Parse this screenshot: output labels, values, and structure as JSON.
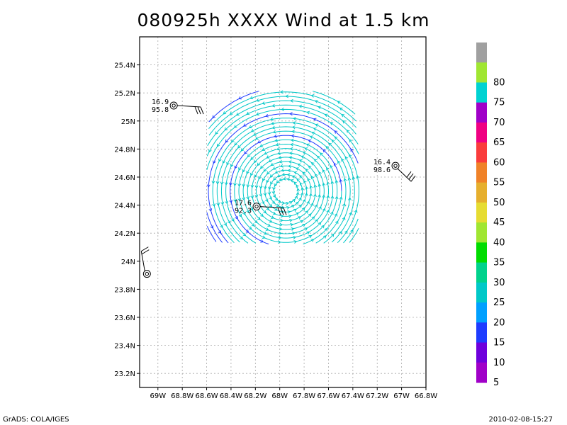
{
  "title": "080925h XXXX Wind at 1.5 km",
  "credit": "GrADS: COLA/IGES",
  "timestamp": "2010-02-08-15:27",
  "chart_data": {
    "type": "streamline",
    "title": "080925h XXXX Wind at 1.5 km",
    "grid": true,
    "xlim": [
      -69.15,
      -66.8
    ],
    "ylim": [
      23.1,
      25.6
    ],
    "x_ticks": [
      {
        "v": -69.0,
        "label": "69W"
      },
      {
        "v": -68.8,
        "label": "68.8W"
      },
      {
        "v": -68.6,
        "label": "68.6W"
      },
      {
        "v": -68.4,
        "label": "68.4W"
      },
      {
        "v": -68.2,
        "label": "68.2W"
      },
      {
        "v": -68.0,
        "label": "68W"
      },
      {
        "v": -67.8,
        "label": "67.8W"
      },
      {
        "v": -67.6,
        "label": "67.6W"
      },
      {
        "v": -67.4,
        "label": "67.4W"
      },
      {
        "v": -67.2,
        "label": "67.2W"
      },
      {
        "v": -67.0,
        "label": "67W"
      },
      {
        "v": -66.8,
        "label": "66.8W"
      }
    ],
    "y_ticks": [
      {
        "v": 23.2,
        "label": "23.2N"
      },
      {
        "v": 23.4,
        "label": "23.4N"
      },
      {
        "v": 23.6,
        "label": "23.6N"
      },
      {
        "v": 23.8,
        "label": "23.8N"
      },
      {
        "v": 24.0,
        "label": "24N"
      },
      {
        "v": 24.2,
        "label": "24.2N"
      },
      {
        "v": 24.4,
        "label": "24.4N"
      },
      {
        "v": 24.6,
        "label": "24.6N"
      },
      {
        "v": 24.8,
        "label": "24.8N"
      },
      {
        "v": 25.0,
        "label": "25N"
      },
      {
        "v": 25.2,
        "label": "25.2N"
      },
      {
        "v": 25.4,
        "label": "25.4N"
      }
    ],
    "streamline_field": {
      "center": [
        -67.95,
        24.5
      ],
      "lon_range": [
        -68.6,
        -67.35
      ],
      "lat_range": [
        24.12,
        25.22
      ],
      "min_radius_deg": 0.1,
      "max_radius_deg": 0.85,
      "rotation": "counterclockwise"
    },
    "colorbar": {
      "levels": [
        {
          "label": "",
          "color": "#a0a0a0"
        },
        {
          "label": "80",
          "color": "#a0e632"
        },
        {
          "label": "75",
          "color": "#00d2d2"
        },
        {
          "label": "70",
          "color": "#a000c8"
        },
        {
          "label": "65",
          "color": "#f00082"
        },
        {
          "label": "60",
          "color": "#fa3c3c"
        },
        {
          "label": "55",
          "color": "#f08228"
        },
        {
          "label": "50",
          "color": "#e6af2d"
        },
        {
          "label": "45",
          "color": "#e6dc32"
        },
        {
          "label": "40",
          "color": "#a0e632"
        },
        {
          "label": "35",
          "color": "#00dc00"
        },
        {
          "label": "30",
          "color": "#00d28c"
        },
        {
          "label": "25",
          "color": "#00c8c8"
        },
        {
          "label": "20",
          "color": "#00a0ff"
        },
        {
          "label": "15",
          "color": "#1e3cff"
        },
        {
          "label": "10",
          "color": "#6e00dc"
        },
        {
          "label": "5",
          "color": "#a000c8"
        }
      ]
    },
    "stations": [
      {
        "lon": -68.87,
        "lat": 25.11,
        "top": "16.9",
        "bottom": "95.8",
        "label_side": "left",
        "barb_dir": "right"
      },
      {
        "lon": -68.19,
        "lat": 24.39,
        "top": "17.6",
        "bottom": "92.3",
        "label_side": "left",
        "barb_dir": "right"
      },
      {
        "lon": -67.05,
        "lat": 24.68,
        "top": "16.4",
        "bottom": "98.6",
        "label_side": "left",
        "barb_dir": "down"
      },
      {
        "lon": -69.09,
        "lat": 23.91,
        "top": "",
        "bottom": "",
        "label_side": "left",
        "barb_dir": "up"
      }
    ],
    "speed_colors": {
      "inner": "#00c8c8",
      "outer_west": "#1e3cff"
    }
  }
}
